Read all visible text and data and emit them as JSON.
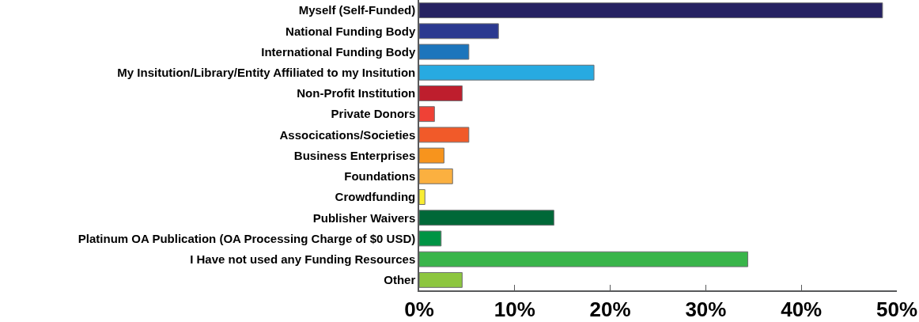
{
  "chart_data": {
    "type": "bar",
    "orientation": "horizontal",
    "categories": [
      "Myself (Self-Funded)",
      "National Funding Body",
      "International Funding Body",
      "My Insitution/Library/Entity Affiliated to my Insitution",
      "Non-Profit Institution",
      "Private Donors",
      "Assocications/Societies",
      "Business Enterprises",
      "Foundations",
      "Crowdfunding",
      "Publisher Waivers",
      "Platinum OA Publication (OA Processing Charge of $0 USD)",
      "I Have not used any Funding Resources",
      "Other"
    ],
    "values": [
      48.5,
      8.3,
      5.2,
      18.3,
      4.5,
      1.6,
      5.2,
      2.6,
      3.5,
      0.6,
      14.1,
      2.3,
      34.4,
      4.5
    ],
    "colors": [
      "#262262",
      "#2b3990",
      "#1c75bc",
      "#27aae1",
      "#be1e2d",
      "#ef4136",
      "#f15a29",
      "#f7941d",
      "#fbb040",
      "#f9ed32",
      "#006838",
      "#009444",
      "#39b54a",
      "#8dc63f"
    ],
    "xlim": [
      0,
      50
    ],
    "xticks": [
      {
        "value": 0,
        "label": "0%"
      },
      {
        "value": 10,
        "label": "10%"
      },
      {
        "value": 20,
        "label": "20%"
      },
      {
        "value": 30,
        "label": "30%"
      },
      {
        "value": 40,
        "label": "40%"
      },
      {
        "value": 50,
        "label": "50%"
      }
    ],
    "grid": false
  }
}
